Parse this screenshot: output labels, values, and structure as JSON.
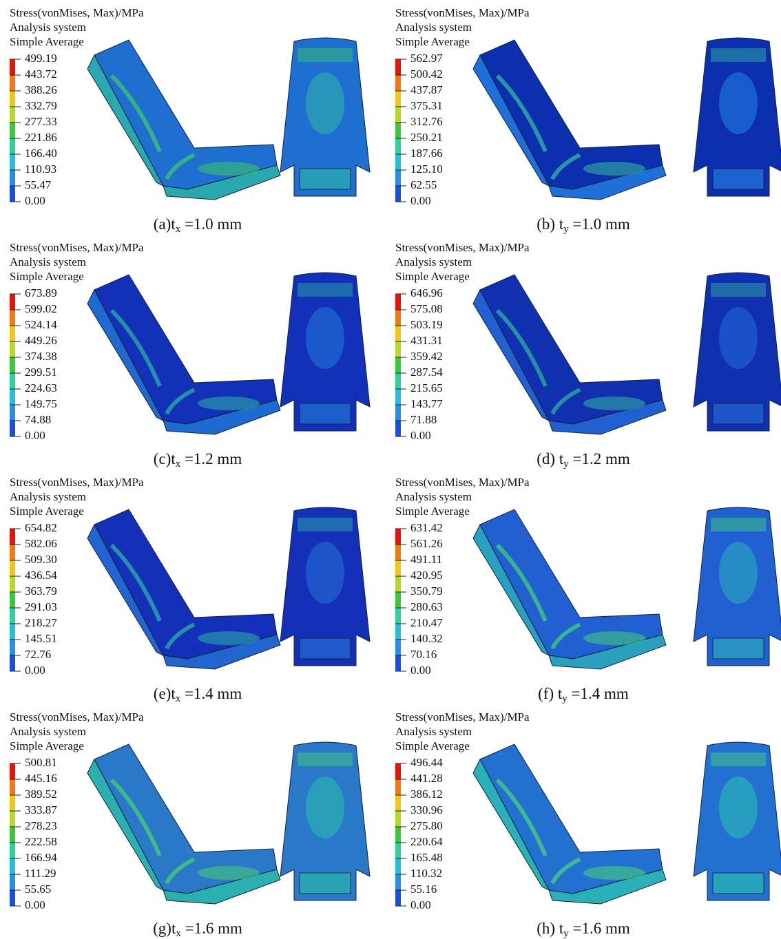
{
  "panels": [
    {
      "header": [
        "Stress(vonMises, Max)/MPa",
        "Analysis system",
        "Simple Average"
      ],
      "legend": [
        "499.19",
        "443.72",
        "388.26",
        "332.79",
        "277.33",
        "221.86",
        "166.40",
        "110.93",
        "55.47",
        "0.00"
      ],
      "caption": {
        "prefix": "(a)t",
        "sub": "x",
        "suffix": " =1.0 mm"
      }
    },
    {
      "header": [
        "Stress(vonMises, Max)/MPa",
        "Analysis system",
        "Simple Average"
      ],
      "legend": [
        "562.97",
        "500.42",
        "437.87",
        "375.31",
        "312.76",
        "250.21",
        "187.66",
        "125.10",
        "62.55",
        "0.00"
      ],
      "caption": {
        "prefix": "(b) t",
        "sub": "y",
        "suffix": " =1.0 mm"
      }
    },
    {
      "header": [
        "Stress(vonMises, Max)/MPa",
        "Analysis system",
        "Simple Average"
      ],
      "legend": [
        "673.89",
        "599.02",
        "524.14",
        "449.26",
        "374.38",
        "299.51",
        "224.63",
        "149.75",
        "74.88",
        "0.00"
      ],
      "caption": {
        "prefix": "(c)t",
        "sub": "x",
        "suffix": " =1.2 mm"
      }
    },
    {
      "header": [
        "Stress(vonMises, Max)/MPa",
        "Analysis system",
        "Simple Average"
      ],
      "legend": [
        "646.96",
        "575.08",
        "503.19",
        "431.31",
        "359.42",
        "287.54",
        "215.65",
        "143.77",
        "71.88",
        "0.00"
      ],
      "caption": {
        "prefix": "(d) t",
        "sub": "y",
        "suffix": " =1.2 mm"
      }
    },
    {
      "header": [
        "Stress(vonMises, Max)/MPa",
        "Analysis system",
        "Simple Average"
      ],
      "legend": [
        "654.82",
        "582.06",
        "509.30",
        "436.54",
        "363.79",
        "291.03",
        "218.27",
        "145.51",
        "72.76",
        "0.00"
      ],
      "caption": {
        "prefix": "(e)t",
        "sub": "x",
        "suffix": " =1.4 mm"
      }
    },
    {
      "header": [
        "Stress(vonMises, Max)/MPa",
        "Analysis system",
        "Simple Average"
      ],
      "legend": [
        "631.42",
        "561.26",
        "491.11",
        "420.95",
        "350.79",
        "280.63",
        "210.47",
        "140.32",
        "70.16",
        "0.00"
      ],
      "caption": {
        "prefix": "(f) t",
        "sub": "y",
        "suffix": " =1.4 mm"
      }
    },
    {
      "header": [
        "Stress(vonMises, Max)/MPa",
        "Analysis system",
        "Simple Average"
      ],
      "legend": [
        "500.81",
        "445.16",
        "389.52",
        "333.87",
        "278.23",
        "222.58",
        "166.94",
        "111.29",
        "55.65",
        "0.00"
      ],
      "caption": {
        "prefix": "(g)t",
        "sub": "x",
        "suffix": " =1.6 mm"
      }
    },
    {
      "header": [
        "Stress(vonMises, Max)/MPa",
        "Analysis system",
        "Simple Average"
      ],
      "legend": [
        "496.44",
        "441.28",
        "386.12",
        "330.96",
        "275.80",
        "220.64",
        "165.48",
        "110.32",
        "55.16",
        "0.00"
      ],
      "caption": {
        "prefix": "(h) t",
        "sub": "y",
        "suffix": " =1.6 mm"
      }
    }
  ]
}
